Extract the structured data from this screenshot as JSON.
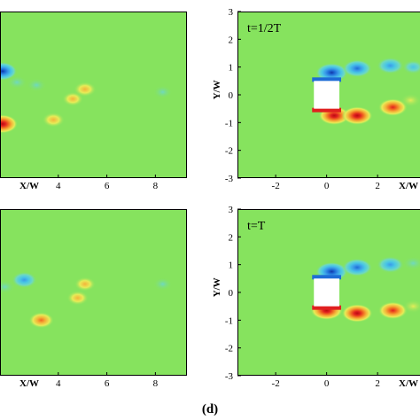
{
  "caption": "(d)",
  "chart_data": [
    {
      "type": "heatmap",
      "panel": "top-left",
      "annotation": "",
      "xlabel": "X/W",
      "ylabel": "",
      "x_ticks": [
        "4",
        "6",
        "8"
      ],
      "y_ticks": [],
      "xlim": [
        1.6,
        9.3
      ],
      "ylim": [
        -3,
        3
      ],
      "colors": {
        "background": "#86e35e",
        "positive": "#e02020",
        "negative": "#1e6cd6"
      },
      "vortices": [
        {
          "x": 1.7,
          "y": 0.85,
          "sign": -1,
          "strength": 0.9
        },
        {
          "x": 2.3,
          "y": 0.45,
          "sign": -1,
          "strength": 0.25
        },
        {
          "x": 3.1,
          "y": 0.35,
          "sign": -1,
          "strength": 0.2
        },
        {
          "x": 1.7,
          "y": -1.05,
          "sign": 1,
          "strength": 1.0
        },
        {
          "x": 3.8,
          "y": -0.9,
          "sign": 1,
          "strength": 0.4
        },
        {
          "x": 4.6,
          "y": -0.15,
          "sign": 1,
          "strength": 0.3
        },
        {
          "x": 5.1,
          "y": 0.2,
          "sign": 1,
          "strength": 0.4
        },
        {
          "x": 8.3,
          "y": 0.1,
          "sign": -1,
          "strength": 0.15
        }
      ]
    },
    {
      "type": "heatmap",
      "panel": "top-right",
      "annotation": "t=1/2T",
      "xlabel": "X/W",
      "ylabel": "Y/W",
      "x_ticks": [
        "-2",
        "0",
        "2"
      ],
      "y_ticks": [
        "3",
        "2",
        "1",
        "0",
        "-1",
        "-2",
        "-3"
      ],
      "xlim": [
        -3.5,
        3.7
      ],
      "ylim": [
        -3,
        3
      ],
      "colors": {
        "background": "#86e35e",
        "positive": "#e02020",
        "negative": "#1e6cd6"
      },
      "body": {
        "x": [
          -0.5,
          0.5
        ],
        "y": [
          -0.5,
          0.5
        ]
      },
      "vortices": [
        {
          "x": 0.2,
          "y": 0.8,
          "sign": -1,
          "strength": 1.0
        },
        {
          "x": 1.2,
          "y": 0.95,
          "sign": -1,
          "strength": 0.8
        },
        {
          "x": 2.5,
          "y": 1.05,
          "sign": -1,
          "strength": 0.65
        },
        {
          "x": 3.4,
          "y": 1.0,
          "sign": -1,
          "strength": 0.3
        },
        {
          "x": 0.3,
          "y": -0.75,
          "sign": 1,
          "strength": 0.95
        },
        {
          "x": 1.2,
          "y": -0.75,
          "sign": 1,
          "strength": 0.9
        },
        {
          "x": 2.6,
          "y": -0.45,
          "sign": 1,
          "strength": 0.8
        },
        {
          "x": 3.3,
          "y": -0.2,
          "sign": 1,
          "strength": 0.2
        }
      ]
    },
    {
      "type": "heatmap",
      "panel": "bottom-left",
      "annotation": "",
      "xlabel": "X/W",
      "ylabel": "",
      "x_ticks": [
        "4",
        "6",
        "8"
      ],
      "y_ticks": [],
      "xlim": [
        1.6,
        9.3
      ],
      "ylim": [
        -3,
        3
      ],
      "colors": {
        "background": "#86e35e",
        "positive": "#e02020",
        "negative": "#1e6cd6"
      },
      "vortices": [
        {
          "x": 2.6,
          "y": 0.45,
          "sign": -1,
          "strength": 0.6
        },
        {
          "x": 1.8,
          "y": 0.2,
          "sign": -1,
          "strength": 0.25
        },
        {
          "x": 3.3,
          "y": -1.0,
          "sign": 1,
          "strength": 0.6
        },
        {
          "x": 4.8,
          "y": -0.2,
          "sign": 1,
          "strength": 0.35
        },
        {
          "x": 5.1,
          "y": 0.3,
          "sign": 1,
          "strength": 0.3
        },
        {
          "x": 8.3,
          "y": 0.3,
          "sign": -1,
          "strength": 0.15
        }
      ]
    },
    {
      "type": "heatmap",
      "panel": "bottom-right",
      "annotation": "t=T",
      "xlabel": "X/W",
      "ylabel": "Y/W",
      "x_ticks": [
        "-2",
        "0",
        "2"
      ],
      "y_ticks": [
        "3",
        "2",
        "1",
        "0",
        "-1",
        "-2",
        "-3"
      ],
      "xlim": [
        -3.5,
        3.7
      ],
      "ylim": [
        -3,
        3
      ],
      "colors": {
        "background": "#86e35e",
        "positive": "#e02020",
        "negative": "#1e6cd6"
      },
      "body": {
        "x": [
          -0.5,
          0.5
        ],
        "y": [
          -0.5,
          0.5
        ]
      },
      "vortices": [
        {
          "x": 0.2,
          "y": 0.75,
          "sign": -1,
          "strength": 1.0
        },
        {
          "x": 1.2,
          "y": 0.9,
          "sign": -1,
          "strength": 0.85
        },
        {
          "x": 2.5,
          "y": 1.0,
          "sign": -1,
          "strength": 0.65
        },
        {
          "x": 3.4,
          "y": 1.05,
          "sign": -1,
          "strength": 0.25
        },
        {
          "x": 0.0,
          "y": -0.65,
          "sign": 1,
          "strength": 1.0
        },
        {
          "x": 1.2,
          "y": -0.75,
          "sign": 1,
          "strength": 0.9
        },
        {
          "x": 2.6,
          "y": -0.65,
          "sign": 1,
          "strength": 0.8
        },
        {
          "x": 3.4,
          "y": -0.5,
          "sign": 1,
          "strength": 0.2
        }
      ]
    }
  ]
}
